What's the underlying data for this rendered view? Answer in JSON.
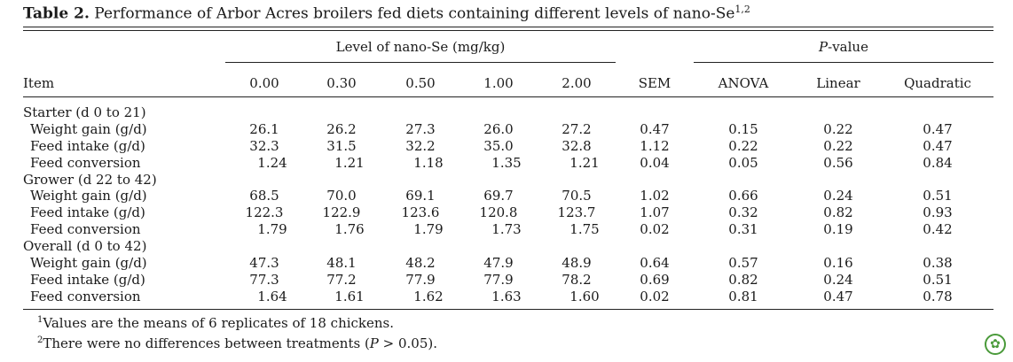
{
  "caption": {
    "label": "Table 2.",
    "text": " Performance of Arbor Acres broilers fed diets containing different levels of nano-Se",
    "sup": "1,2"
  },
  "headers": {
    "level_group": "Level of nano-Se (mg/kg)",
    "p_group_italic": "P",
    "p_group_rest": "-value",
    "item": "Item",
    "columns": [
      "0.00",
      "0.30",
      "0.50",
      "1.00",
      "2.00",
      "SEM",
      "ANOVA",
      "Linear",
      "Quadratic"
    ]
  },
  "rows": [
    {
      "label": "Starter (d 0 to 21)",
      "cells": []
    },
    {
      "label": "Weight gain (g/d)",
      "cells": [
        "26.1",
        "26.2",
        "27.3",
        "26.0",
        "27.2",
        "0.47",
        "0.15",
        "0.22",
        "0.47"
      ]
    },
    {
      "label": "Feed intake (g/d)",
      "cells": [
        "32.3",
        "31.5",
        "32.2",
        "35.0",
        "32.8",
        "1.12",
        "0.22",
        "0.22",
        "0.47"
      ]
    },
    {
      "label": "Feed conversion",
      "cells": [
        "1.24",
        "1.21",
        "1.18",
        "1.35",
        "1.21",
        "0.04",
        "0.05",
        "0.56",
        "0.84"
      ]
    },
    {
      "label": "Grower (d 22 to 42)",
      "cells": []
    },
    {
      "label": "Weight gain (g/d)",
      "cells": [
        "68.5",
        "70.0",
        "69.1",
        "69.7",
        "70.5",
        "1.02",
        "0.66",
        "0.24",
        "0.51"
      ]
    },
    {
      "label": "Feed intake (g/d)",
      "cells": [
        "122.3",
        "122.9",
        "123.6",
        "120.8",
        "123.7",
        "1.07",
        "0.32",
        "0.82",
        "0.93"
      ]
    },
    {
      "label": "Feed conversion",
      "cells": [
        "1.79",
        "1.76",
        "1.79",
        "1.73",
        "1.75",
        "0.02",
        "0.31",
        "0.19",
        "0.42"
      ]
    },
    {
      "label": "Overall (d 0 to 42)",
      "cells": []
    },
    {
      "label": "Weight gain (g/d)",
      "cells": [
        "47.3",
        "48.1",
        "48.2",
        "47.9",
        "48.9",
        "0.64",
        "0.57",
        "0.16",
        "0.38"
      ]
    },
    {
      "label": "Feed intake (g/d)",
      "cells": [
        "77.3",
        "77.2",
        "77.9",
        "77.9",
        "78.2",
        "0.69",
        "0.82",
        "0.24",
        "0.51"
      ]
    },
    {
      "label": "Feed conversion",
      "cells": [
        "1.64",
        "1.61",
        "1.62",
        "1.63",
        "1.60",
        "0.02",
        "0.81",
        "0.47",
        "0.78"
      ]
    }
  ],
  "footnotes": [
    {
      "sup": "1",
      "text": "Values are the means of 6 replicates of 18 chickens."
    },
    {
      "sup": "2",
      "pre": "There were no differences between treatments (",
      "italic": "P",
      "post": " > 0.05)."
    }
  ],
  "icons": {
    "corner_logo": "journal-logo-icon"
  }
}
